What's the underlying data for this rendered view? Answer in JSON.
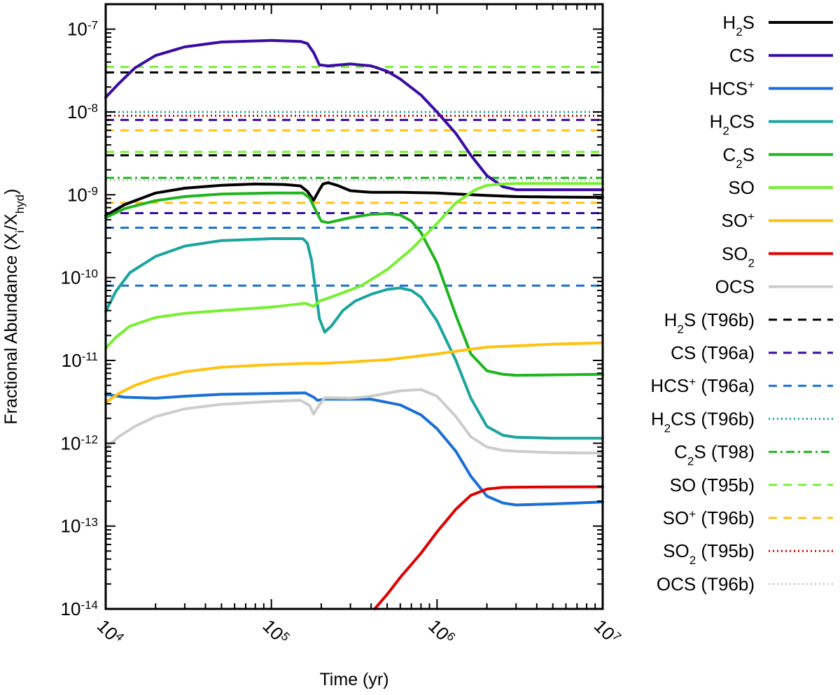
{
  "chart_data": {
    "type": "line",
    "xscale": "log",
    "yscale": "log",
    "xlim": [
      10000,
      10000000
    ],
    "ylim": [
      1e-14,
      2e-07
    ],
    "xlabel": "Time (yr)",
    "ylabel": {
      "main": "Fractional Abundance (X",
      "sub1": "i",
      "mid": "/X",
      "sub2": "hyd",
      "end": ")"
    },
    "x_ticks": [
      {
        "value": 10000,
        "base": "10",
        "exp": "4"
      },
      {
        "value": 100000,
        "base": "10",
        "exp": "5"
      },
      {
        "value": 1000000,
        "base": "10",
        "exp": "6"
      },
      {
        "value": 10000000,
        "base": "10",
        "exp": "7"
      }
    ],
    "y_ticks": [
      {
        "value": 1e-07,
        "base": "10",
        "exp": "-7"
      },
      {
        "value": 1e-08,
        "base": "10",
        "exp": "-8"
      },
      {
        "value": 1e-09,
        "base": "10",
        "exp": "-9"
      },
      {
        "value": 1e-10,
        "base": "10",
        "exp": "-10"
      },
      {
        "value": 1e-11,
        "base": "10",
        "exp": "-11"
      },
      {
        "value": 1e-12,
        "base": "10",
        "exp": "-12"
      },
      {
        "value": 1e-13,
        "base": "10",
        "exp": "-13"
      },
      {
        "value": 1e-14,
        "base": "10",
        "exp": "-14"
      }
    ],
    "series": [
      {
        "id": "h2s",
        "name": [
          [
            "H"
          ],
          [
            "2",
            "sub"
          ],
          [
            "S"
          ]
        ],
        "color": "#000000",
        "style": "solid",
        "points": [
          [
            10000.0,
            5.6e-10
          ],
          [
            13000.0,
            7.6e-10
          ],
          [
            20000.0,
            1.05e-09
          ],
          [
            30000.0,
            1.2e-09
          ],
          [
            50000.0,
            1.3e-09
          ],
          [
            80000.0,
            1.35e-09
          ],
          [
            120000.0,
            1.33e-09
          ],
          [
            150000.0,
            1.28e-09
          ],
          [
            165000.0,
            1.1e-09
          ],
          [
            180000.0,
            8.6e-10
          ],
          [
            195000.0,
            1.15e-09
          ],
          [
            205000.0,
            1.35e-09
          ],
          [
            220000.0,
            1.4e-09
          ],
          [
            250000.0,
            1.3e-09
          ],
          [
            300000.0,
            1.12e-09
          ],
          [
            400000.0,
            1.07e-09
          ],
          [
            600000.0,
            1.07e-09
          ],
          [
            1000000.0,
            1.05e-09
          ],
          [
            2000000.0,
            9.8e-10
          ],
          [
            3000000.0,
            9.5e-10
          ],
          [
            5000000.0,
            9.4e-10
          ],
          [
            10000000.0,
            9.3e-10
          ]
        ]
      },
      {
        "id": "cs",
        "name": [
          [
            "CS"
          ]
        ],
        "color": "#3a0ca3",
        "style": "solid",
        "points": [
          [
            10000.0,
            1.5e-08
          ],
          [
            12000.0,
            2.2e-08
          ],
          [
            15000.0,
            3.4e-08
          ],
          [
            20000.0,
            4.8e-08
          ],
          [
            30000.0,
            6.1e-08
          ],
          [
            50000.0,
            7e-08
          ],
          [
            100000.0,
            7.3e-08
          ],
          [
            150000.0,
            7.1e-08
          ],
          [
            165000.0,
            6.7e-08
          ],
          [
            180000.0,
            5.2e-08
          ],
          [
            195000.0,
            3.7e-08
          ],
          [
            220000.0,
            3.6e-08
          ],
          [
            300000.0,
            3.8e-08
          ],
          [
            400000.0,
            3.6e-08
          ],
          [
            500000.0,
            3.1e-08
          ],
          [
            600000.0,
            2.5e-08
          ],
          [
            800000.0,
            1.6e-08
          ],
          [
            1000000.0,
            1e-08
          ],
          [
            1300000.0,
            5.5e-09
          ],
          [
            1600000.0,
            3e-09
          ],
          [
            2000000.0,
            1.7e-09
          ],
          [
            2500000.0,
            1.25e-09
          ],
          [
            3000000.0,
            1.15e-09
          ],
          [
            5000000.0,
            1.15e-09
          ],
          [
            10000000.0,
            1.15e-09
          ]
        ]
      },
      {
        "id": "hcsp",
        "name": [
          [
            "HCS"
          ],
          [
            "+",
            "sup"
          ]
        ],
        "color": "#1a6fd6",
        "style": "solid",
        "points": [
          [
            10000.0,
            3.9e-12
          ],
          [
            13000.0,
            3.6e-12
          ],
          [
            20000.0,
            3.5e-12
          ],
          [
            30000.0,
            3.7e-12
          ],
          [
            50000.0,
            3.9e-12
          ],
          [
            100000.0,
            4e-12
          ],
          [
            160000.0,
            4.05e-12
          ],
          [
            180000.0,
            3.6e-12
          ],
          [
            190000.0,
            3.3e-12
          ],
          [
            210000.0,
            3.4e-12
          ],
          [
            300000.0,
            3.4e-12
          ],
          [
            400000.0,
            3.4e-12
          ],
          [
            600000.0,
            2.9e-12
          ],
          [
            800000.0,
            2.2e-12
          ],
          [
            1000000.0,
            1.5e-12
          ],
          [
            1300000.0,
            8e-13
          ],
          [
            1600000.0,
            4e-13
          ],
          [
            2000000.0,
            2.3e-13
          ],
          [
            2500000.0,
            1.9e-13
          ],
          [
            3000000.0,
            1.8e-13
          ],
          [
            5000000.0,
            1.85e-13
          ],
          [
            10000000.0,
            1.95e-13
          ]
        ]
      },
      {
        "id": "h2cs",
        "name": [
          [
            "H"
          ],
          [
            "2",
            "sub"
          ],
          [
            "CS"
          ]
        ],
        "color": "#19a59e",
        "style": "solid",
        "points": [
          [
            10000.0,
            3.9e-11
          ],
          [
            11500.0,
            6.8e-11
          ],
          [
            14000.0,
            1.15e-10
          ],
          [
            20000.0,
            1.8e-10
          ],
          [
            30000.0,
            2.4e-10
          ],
          [
            50000.0,
            2.8e-10
          ],
          [
            100000.0,
            2.95e-10
          ],
          [
            155000.0,
            2.95e-10
          ],
          [
            165000.0,
            2.6e-10
          ],
          [
            175000.0,
            1.6e-10
          ],
          [
            185000.0,
            7e-11
          ],
          [
            195000.0,
            3.2e-11
          ],
          [
            210000.0,
            2.2e-11
          ],
          [
            230000.0,
            2.6e-11
          ],
          [
            270000.0,
            4e-11
          ],
          [
            320000.0,
            5.2e-11
          ],
          [
            400000.0,
            6.3e-11
          ],
          [
            500000.0,
            7.2e-11
          ],
          [
            600000.0,
            7.5e-11
          ],
          [
            700000.0,
            7e-11
          ],
          [
            800000.0,
            5.8e-11
          ],
          [
            1000000.0,
            3e-11
          ],
          [
            1300000.0,
            1e-11
          ],
          [
            1600000.0,
            3.5e-12
          ],
          [
            2000000.0,
            1.6e-12
          ],
          [
            2500000.0,
            1.25e-12
          ],
          [
            3000000.0,
            1.18e-12
          ],
          [
            5000000.0,
            1.15e-12
          ],
          [
            10000000.0,
            1.15e-12
          ]
        ]
      },
      {
        "id": "c2s",
        "name": [
          [
            "C"
          ],
          [
            "2",
            "sub"
          ],
          [
            "S"
          ]
        ],
        "color": "#1fb51f",
        "style": "solid",
        "points": [
          [
            10000.0,
            5.3e-10
          ],
          [
            13000.0,
            6.8e-10
          ],
          [
            20000.0,
            8.5e-10
          ],
          [
            30000.0,
            9.5e-10
          ],
          [
            50000.0,
            1.02e-09
          ],
          [
            100000.0,
            1.05e-09
          ],
          [
            155000.0,
            1.05e-09
          ],
          [
            170000.0,
            9.2e-10
          ],
          [
            185000.0,
            6.5e-10
          ],
          [
            200000.0,
            4.8e-10
          ],
          [
            220000.0,
            4.6e-10
          ],
          [
            300000.0,
            5.3e-10
          ],
          [
            400000.0,
            5.8e-10
          ],
          [
            500000.0,
            5.9e-10
          ],
          [
            600000.0,
            5.7e-10
          ],
          [
            700000.0,
            4.8e-10
          ],
          [
            800000.0,
            3.5e-10
          ],
          [
            1000000.0,
            1.5e-10
          ],
          [
            1300000.0,
            3.5e-11
          ],
          [
            1600000.0,
            1.2e-11
          ],
          [
            2000000.0,
            7.5e-12
          ],
          [
            2500000.0,
            6.8e-12
          ],
          [
            3000000.0,
            6.6e-12
          ],
          [
            5000000.0,
            6.7e-12
          ],
          [
            10000000.0,
            6.8e-12
          ]
        ]
      },
      {
        "id": "so",
        "name": [
          [
            "SO"
          ]
        ],
        "color": "#77f032",
        "style": "solid",
        "points": [
          [
            10000.0,
            1.4e-11
          ],
          [
            11500.0,
            1.9e-11
          ],
          [
            14000.0,
            2.6e-11
          ],
          [
            20000.0,
            3.3e-11
          ],
          [
            30000.0,
            3.7e-11
          ],
          [
            50000.0,
            4e-11
          ],
          [
            100000.0,
            4.4e-11
          ],
          [
            160000.0,
            4.9e-11
          ],
          [
            180000.0,
            4.5e-11
          ],
          [
            195000.0,
            5.2e-11
          ],
          [
            250000.0,
            6.2e-11
          ],
          [
            350000.0,
            8e-11
          ],
          [
            500000.0,
            1.25e-10
          ],
          [
            700000.0,
            2.2e-10
          ],
          [
            1000000.0,
            4.5e-10
          ],
          [
            1300000.0,
            8e-10
          ],
          [
            1700000.0,
            1.15e-09
          ],
          [
            2000000.0,
            1.3e-09
          ],
          [
            2500000.0,
            1.35e-09
          ],
          [
            3000000.0,
            1.37e-09
          ],
          [
            5000000.0,
            1.37e-09
          ],
          [
            10000000.0,
            1.37e-09
          ]
        ]
      },
      {
        "id": "sop",
        "name": [
          [
            "SO"
          ],
          [
            "+",
            "sup"
          ]
        ],
        "color": "#ffc20e",
        "style": "solid",
        "points": [
          [
            10000.0,
            3.1e-12
          ],
          [
            12000.0,
            4e-12
          ],
          [
            15000.0,
            5e-12
          ],
          [
            20000.0,
            6.1e-12
          ],
          [
            30000.0,
            7.3e-12
          ],
          [
            50000.0,
            8.3e-12
          ],
          [
            100000.0,
            8.9e-12
          ],
          [
            160000.0,
            9.2e-12
          ],
          [
            200000.0,
            9.2e-12
          ],
          [
            300000.0,
            9.6e-12
          ],
          [
            500000.0,
            1.02e-11
          ],
          [
            1000000.0,
            1.2e-11
          ],
          [
            2000000.0,
            1.45e-11
          ],
          [
            5000000.0,
            1.57e-11
          ],
          [
            10000000.0,
            1.63e-11
          ]
        ]
      },
      {
        "id": "so2",
        "name": [
          [
            "SO"
          ],
          [
            "2",
            "sub"
          ]
        ],
        "color": "#e00000",
        "style": "solid",
        "points": [
          [
            420000.0,
            1e-14
          ],
          [
            500000.0,
            1.5e-14
          ],
          [
            600000.0,
            2.4e-14
          ],
          [
            800000.0,
            4.7e-14
          ],
          [
            1000000.0,
            8.5e-14
          ],
          [
            1300000.0,
            1.6e-13
          ],
          [
            1600000.0,
            2.35e-13
          ],
          [
            2000000.0,
            2.8e-13
          ],
          [
            2500000.0,
            2.93e-13
          ],
          [
            3000000.0,
            2.95e-13
          ],
          [
            5000000.0,
            2.97e-13
          ],
          [
            10000000.0,
            2.98e-13
          ]
        ]
      },
      {
        "id": "ocs",
        "name": [
          [
            "OCS"
          ]
        ],
        "color": "#cccccc",
        "style": "solid",
        "points": [
          [
            10000.0,
            8.8e-13
          ],
          [
            12000.0,
            1.2e-12
          ],
          [
            15000.0,
            1.6e-12
          ],
          [
            20000.0,
            2.1e-12
          ],
          [
            30000.0,
            2.6e-12
          ],
          [
            50000.0,
            2.95e-12
          ],
          [
            100000.0,
            3.2e-12
          ],
          [
            150000.0,
            3.3e-12
          ],
          [
            170000.0,
            2.85e-12
          ],
          [
            180000.0,
            2.25e-12
          ],
          [
            190000.0,
            2.7e-12
          ],
          [
            210000.0,
            3.55e-12
          ],
          [
            300000.0,
            3.5e-12
          ],
          [
            400000.0,
            3.7e-12
          ],
          [
            600000.0,
            4.3e-12
          ],
          [
            800000.0,
            4.45e-12
          ],
          [
            1000000.0,
            3.7e-12
          ],
          [
            1300000.0,
            2.1e-12
          ],
          [
            1600000.0,
            1.2e-12
          ],
          [
            2000000.0,
            9e-13
          ],
          [
            2500000.0,
            8.2e-13
          ],
          [
            3000000.0,
            8e-13
          ],
          [
            5000000.0,
            7.7e-13
          ],
          [
            10000000.0,
            7.6e-13
          ]
        ]
      },
      {
        "id": "h2s_obs",
        "name": [
          [
            "H"
          ],
          [
            "2",
            "sub"
          ],
          [
            "S (T96b)"
          ]
        ],
        "color": "#000000",
        "style": "dashed",
        "values": [
          3e-08,
          3e-09
        ]
      },
      {
        "id": "cs_obs",
        "name": [
          [
            "CS (T96a)"
          ]
        ],
        "color": "#3a0ca3",
        "style": "dashed",
        "values": [
          8e-09,
          6e-10
        ]
      },
      {
        "id": "hcsp_obs",
        "name": [
          [
            "HCS"
          ],
          [
            "+",
            "sup"
          ],
          [
            " (T96a)"
          ]
        ],
        "color": "#1a6fd6",
        "style": "dashed",
        "values": [
          4e-10,
          8e-11
        ]
      },
      {
        "id": "h2cs_obs",
        "name": [
          [
            "H"
          ],
          [
            "2",
            "sub"
          ],
          [
            "CS (T96b)"
          ]
        ],
        "color": "#19a59e",
        "style": "dotted",
        "values": [
          1e-08
        ]
      },
      {
        "id": "c2s_obs",
        "name": [
          [
            "C"
          ],
          [
            "2",
            "sub"
          ],
          [
            "S (T98)"
          ]
        ],
        "color": "#1fb51f",
        "style": "dashdot",
        "values": [
          1.6e-09
        ]
      },
      {
        "id": "so_obs",
        "name": [
          [
            "SO (T95b)"
          ]
        ],
        "color": "#77f032",
        "style": "dashed",
        "values": [
          3.5e-08,
          3.3e-09
        ]
      },
      {
        "id": "sop_obs",
        "name": [
          [
            "SO"
          ],
          [
            "+",
            "sup"
          ],
          [
            " (T96b)"
          ]
        ],
        "color": "#ffc20e",
        "style": "dashed",
        "values": [
          6e-09,
          8e-10
        ]
      },
      {
        "id": "so2_obs",
        "name": [
          [
            "SO"
          ],
          [
            "2",
            "sub"
          ],
          [
            " (T95b)"
          ]
        ],
        "color": "#e00000",
        "style": "dotted",
        "values": [
          9e-09
        ]
      },
      {
        "id": "ocs_obs",
        "name": [
          [
            "OCS (T96b)"
          ]
        ],
        "color": "#cccccc",
        "style": "dotted",
        "values": [
          1.5e-09
        ]
      }
    ]
  }
}
